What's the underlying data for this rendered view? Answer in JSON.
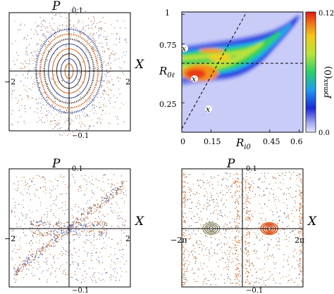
{
  "chart_data": [
    {
      "panel": "top-left",
      "type": "scatter",
      "description_kind": "Poincare section",
      "xlabel": "X",
      "ylabel": "P",
      "xlim": [
        -2.2,
        2.2
      ],
      "ylim": [
        -0.12,
        0.12
      ],
      "x_ticks": [
        "−2",
        "2"
      ],
      "y_ticks": [
        "0.1",
        "−0.1"
      ],
      "center": [
        0,
        0
      ],
      "orbit_half_widths_x": [
        0.15,
        0.3,
        0.45,
        0.6,
        0.75,
        0.9,
        1.05,
        1.2
      ],
      "orbit_half_heights_p": [
        0.015,
        0.025,
        0.035,
        0.045,
        0.055,
        0.065,
        0.075,
        0.085
      ],
      "colors": {
        "orbit_warm": "#d46a1e",
        "orbit_cool": "#3a4f9c",
        "orbit_dark": "#4a3a30"
      }
    },
    {
      "panel": "top-right",
      "type": "heatmap",
      "xlabel": "R_i0",
      "ylabel": "R_0ℓ",
      "xlim": [
        0,
        0.62
      ],
      "ylim": [
        0,
        1.02
      ],
      "x_ticks": [
        0,
        0.15,
        0.45,
        0.6
      ],
      "x_tick_labels": [
        "0",
        "0.15",
        "0.45",
        "0.6"
      ],
      "y_ticks": [
        0.25,
        0.75,
        1
      ],
      "y_tick_labels": [
        "0.25",
        "0.75",
        "1"
      ],
      "colorbar": {
        "label": "P^max(0)",
        "min": 0.0,
        "max": 0.12,
        "tick_labels": [
          "0.12",
          "0.0"
        ]
      },
      "band_centerline": [
        [
          0,
          0.63
        ],
        [
          0.1,
          0.66
        ],
        [
          0.2,
          0.7
        ],
        [
          0.3,
          0.76
        ],
        [
          0.4,
          0.83
        ],
        [
          0.5,
          0.9
        ],
        [
          0.6,
          1.0
        ]
      ],
      "hot_region_center": [
        0.06,
        0.53
      ],
      "dashed_lines": [
        {
          "from": [
            0,
            0.03
          ],
          "to": [
            0.33,
            1.0
          ]
        },
        {
          "from": [
            0,
            0.58
          ],
          "to": [
            0.62,
            0.58
          ]
        }
      ],
      "markers": [
        {
          "symbol": "x",
          "x": 0.01,
          "y": 0.7
        },
        {
          "symbol": "x",
          "x": 0.07,
          "y": 0.5
        },
        {
          "symbol": "x",
          "x": 0.12,
          "y": 0.2
        }
      ]
    },
    {
      "panel": "bottom-left",
      "type": "scatter",
      "xlabel": "X",
      "ylabel": "P",
      "xlim": [
        -2.2,
        2.2
      ],
      "ylim": [
        -0.12,
        0.12
      ],
      "x_ticks": [
        "−2",
        "2"
      ],
      "y_ticks": [
        "0.1",
        "−0.1"
      ],
      "description_kind": "hyperbolic separatrix with diagonal band"
    },
    {
      "panel": "bottom-right",
      "type": "scatter",
      "xlabel": "X",
      "ylabel": "P",
      "xlim": [
        -7.0,
        7.0
      ],
      "ylim": [
        -0.12,
        0.12
      ],
      "x_ticks": [
        "−2π",
        "2π"
      ],
      "y_ticks": [
        "0.1",
        "−0.1"
      ],
      "island_centers_x": [
        -3.6,
        3.1
      ]
    }
  ]
}
